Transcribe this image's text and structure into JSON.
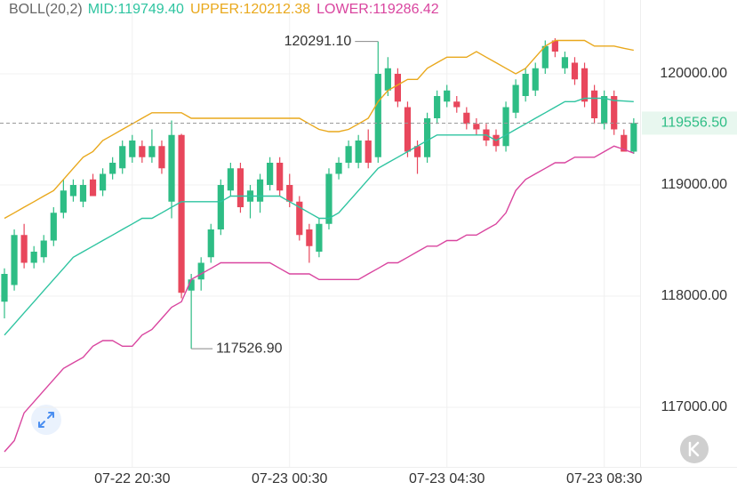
{
  "chart_data": {
    "type": "candlestick",
    "indicator": "BOLL(20,2)",
    "categories": [
      null,
      null,
      null,
      null,
      null,
      null,
      null,
      null,
      null,
      null,
      null,
      null,
      null,
      "07-22 20:30",
      null,
      null,
      null,
      null,
      null,
      null,
      null,
      null,
      null,
      null,
      null,
      null,
      null,
      null,
      null,
      "07-23 00:30",
      null,
      null,
      null,
      null,
      null,
      null,
      null,
      null,
      null,
      null,
      null,
      null,
      null,
      null,
      null,
      "07-23 04:30",
      null,
      null,
      null,
      null,
      null,
      null,
      null,
      null,
      null,
      null,
      null,
      null,
      null,
      null,
      null,
      "07-23 08:30",
      null,
      null,
      null
    ],
    "open": [
      117950,
      118100,
      118550,
      118300,
      118350,
      118500,
      118750,
      118900,
      118850,
      119050,
      118950,
      119100,
      119150,
      119250,
      119350,
      119250,
      119350,
      118850,
      119450,
      118050,
      118150,
      118350,
      118600,
      118950,
      119150,
      118850,
      118850,
      119000,
      119200,
      119000,
      118850,
      118600,
      118400,
      118650,
      119100,
      119200,
      119200,
      119400,
      119250,
      119850,
      120000,
      119700,
      119350,
      119250,
      119600,
      119750,
      119750,
      119650,
      119550,
      119500,
      119450,
      119350,
      119650,
      119800,
      119850,
      120050,
      120300,
      120050,
      120100,
      120050,
      119850,
      119550,
      119800,
      119450,
      119300
    ],
    "high": [
      118250,
      118600,
      118650,
      118450,
      118550,
      118800,
      119050,
      119050,
      119050,
      119100,
      119150,
      119250,
      119400,
      119450,
      119400,
      119500,
      119400,
      119580,
      119460,
      118200,
      118350,
      118650,
      119050,
      119200,
      119200,
      119000,
      119100,
      119250,
      119250,
      119100,
      118900,
      118650,
      118700,
      119150,
      119250,
      119400,
      119450,
      119500,
      120291.1,
      120150,
      120050,
      119750,
      119400,
      119650,
      119850,
      119900,
      119800,
      119700,
      119600,
      119550,
      119500,
      119750,
      119950,
      120050,
      120100,
      120300,
      120320,
      120200,
      120150,
      120100,
      119900,
      119850,
      119850,
      119500,
      119600
    ],
    "low": [
      117800,
      118050,
      118250,
      118250,
      118300,
      118450,
      118700,
      118850,
      118800,
      118900,
      118900,
      119050,
      119100,
      119200,
      119200,
      119200,
      119100,
      118700,
      117980,
      117526.9,
      118050,
      118300,
      118550,
      118900,
      118750,
      118700,
      118750,
      118950,
      118900,
      118800,
      118500,
      118300,
      118350,
      118600,
      119050,
      119150,
      119150,
      119150,
      119200,
      119800,
      119700,
      119250,
      119100,
      119200,
      119550,
      119700,
      119650,
      119500,
      119450,
      119350,
      119300,
      119300,
      119600,
      119750,
      119800,
      120000,
      120150,
      120000,
      119900,
      119700,
      119550,
      119500,
      119450,
      119300,
      119280
    ],
    "close": [
      118200,
      118550,
      118300,
      118400,
      118500,
      118750,
      118950,
      119000,
      119000,
      118900,
      119100,
      119200,
      119350,
      119400,
      119250,
      119350,
      119150,
      119450,
      118030,
      118150,
      118300,
      118600,
      119000,
      119150,
      118800,
      118950,
      119050,
      119200,
      118950,
      118850,
      118550,
      118450,
      118650,
      119100,
      119200,
      119350,
      119400,
      119200,
      120000,
      120050,
      119750,
      119300,
      119250,
      119600,
      119800,
      119850,
      119700,
      119550,
      119500,
      119400,
      119350,
      119700,
      119900,
      120000,
      120050,
      120250,
      120200,
      120150,
      119950,
      119750,
      119600,
      119800,
      119500,
      119300,
      119556.5
    ],
    "up_color": "#2ebd85",
    "down_color": "#e8475c",
    "series": [
      {
        "name": "MID:119749.40",
        "color": "#2ec4a0",
        "values": [
          117650,
          117750,
          117850,
          117950,
          118050,
          118150,
          118250,
          118350,
          118400,
          118450,
          118500,
          118550,
          118600,
          118650,
          118700,
          118700,
          118750,
          118800,
          118850,
          118850,
          118850,
          118850,
          118850,
          118900,
          118900,
          118900,
          118900,
          118900,
          118900,
          118850,
          118800,
          118750,
          118700,
          118700,
          118750,
          118850,
          118950,
          119050,
          119150,
          119200,
          119250,
          119300,
          119350,
          119400,
          119450,
          119450,
          119450,
          119450,
          119450,
          119450,
          119400,
          119450,
          119500,
          119550,
          119600,
          119650,
          119700,
          119750,
          119750,
          119780,
          119780,
          119780,
          119760,
          119755,
          119749.4
        ]
      },
      {
        "name": "UPPER:120212.38",
        "color": "#e9a81c",
        "values": [
          118700,
          118750,
          118800,
          118850,
          118900,
          118950,
          119050,
          119150,
          119250,
          119300,
          119400,
          119450,
          119500,
          119550,
          119600,
          119650,
          119650,
          119650,
          119650,
          119600,
          119600,
          119600,
          119600,
          119600,
          119600,
          119600,
          119600,
          119600,
          119600,
          119600,
          119600,
          119550,
          119500,
          119480,
          119480,
          119500,
          119550,
          119600,
          119750,
          119850,
          119900,
          119950,
          119950,
          120050,
          120100,
          120150,
          120150,
          120150,
          120200,
          120150,
          120100,
          120050,
          120000,
          120050,
          120150,
          120250,
          120300,
          120300,
          120300,
          120300,
          120250,
          120250,
          120250,
          120230,
          120212.38
        ]
      },
      {
        "name": "LOWER:119286.42",
        "color": "#d9459f",
        "values": [
          116600,
          116700,
          116950,
          117050,
          117150,
          117250,
          117350,
          117400,
          117450,
          117550,
          117600,
          117600,
          117550,
          117550,
          117650,
          117700,
          117800,
          117900,
          117950,
          118150,
          118200,
          118250,
          118300,
          118300,
          118300,
          118300,
          118300,
          118300,
          118250,
          118200,
          118200,
          118200,
          118150,
          118150,
          118150,
          118150,
          118150,
          118200,
          118250,
          118300,
          118300,
          118350,
          118400,
          118450,
          118450,
          118500,
          118500,
          118550,
          118550,
          118600,
          118650,
          118750,
          118950,
          119050,
          119100,
          119150,
          119200,
          119200,
          119250,
          119250,
          119250,
          119300,
          119350,
          119320,
          119286.42
        ]
      }
    ],
    "ylim": [
      116560,
      120640
    ],
    "yticks": [
      {
        "value": 117000,
        "label": "117000.00"
      },
      {
        "value": 118000,
        "label": "118000.00"
      },
      {
        "value": 119000,
        "label": "119000.00"
      },
      {
        "value": 120000,
        "label": "120000.00"
      }
    ],
    "current_price": {
      "value": 119556.5,
      "label": "119556.50"
    },
    "annotations": [
      {
        "index": 38,
        "value": 120291.1,
        "label": "120291.10"
      },
      {
        "index": 19,
        "value": 117526.9,
        "label": "117526.90"
      }
    ],
    "grid": true
  }
}
